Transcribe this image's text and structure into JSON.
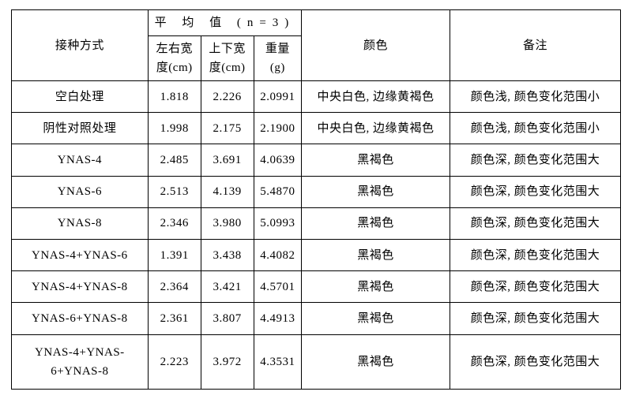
{
  "headers": {
    "method": "接种方式",
    "avg_group": "平 均 值 (n=3)",
    "width_lr": "左右宽\n度(cm)",
    "width_tb": "上下宽\n度(cm)",
    "weight": "重量\n(g)",
    "color": "颜色",
    "note": "备注"
  },
  "rows": [
    {
      "method": "空白处理",
      "w_lr": "1.818",
      "w_tb": "2.226",
      "wt": "2.0991",
      "color": "中央白色, 边缘黄褐色",
      "note": "颜色浅, 颜色变化范围小"
    },
    {
      "method": "阴性对照处理",
      "w_lr": "1.998",
      "w_tb": "2.175",
      "wt": "2.1900",
      "color": "中央白色, 边缘黄褐色",
      "note": "颜色浅, 颜色变化范围小"
    },
    {
      "method": "YNAS-4",
      "w_lr": "2.485",
      "w_tb": "3.691",
      "wt": "4.0639",
      "color": "黑褐色",
      "note": "颜色深, 颜色变化范围大"
    },
    {
      "method": "YNAS-6",
      "w_lr": "2.513",
      "w_tb": "4.139",
      "wt": "5.4870",
      "color": "黑褐色",
      "note": "颜色深, 颜色变化范围大"
    },
    {
      "method": "YNAS-8",
      "w_lr": "2.346",
      "w_tb": "3.980",
      "wt": "5.0993",
      "color": "黑褐色",
      "note": "颜色深, 颜色变化范围大"
    },
    {
      "method": "YNAS-4+YNAS-6",
      "w_lr": "1.391",
      "w_tb": "3.438",
      "wt": "4.4082",
      "color": "黑褐色",
      "note": "颜色深, 颜色变化范围大"
    },
    {
      "method": "YNAS-4+YNAS-8",
      "w_lr": "2.364",
      "w_tb": "3.421",
      "wt": "4.5701",
      "color": "黑褐色",
      "note": "颜色深, 颜色变化范围大"
    },
    {
      "method": "YNAS-6+YNAS-8",
      "w_lr": "2.361",
      "w_tb": "3.807",
      "wt": "4.4913",
      "color": "黑褐色",
      "note": "颜色深, 颜色变化范围大"
    },
    {
      "method": "YNAS-4+YNAS-6+YNAS-8",
      "w_lr": "2.223",
      "w_tb": "3.972",
      "wt": "4.3531",
      "color": "黑褐色",
      "note": "颜色深, 颜色变化范围大"
    }
  ],
  "style": {
    "border_color": "#000000",
    "text_color": "#000000",
    "background": "#ffffff",
    "font_family": "SimSun, 宋体, serif",
    "font_size_pt": 11
  }
}
